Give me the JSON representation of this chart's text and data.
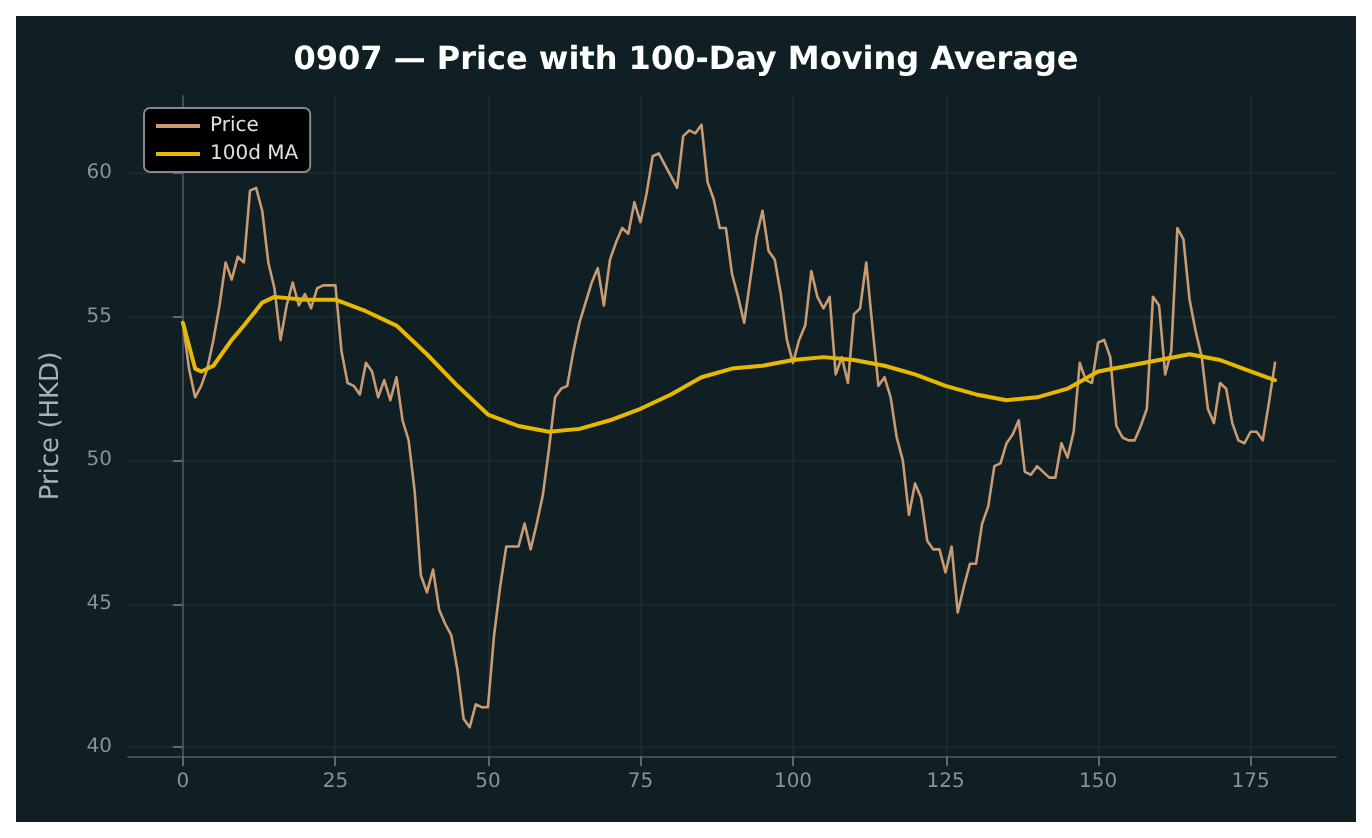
{
  "chart_data": {
    "type": "line",
    "title": "0907 — Price with 100-Day Moving Average",
    "ylabel": "Price (HKD)",
    "xlim": [
      -9,
      189
    ],
    "ylim": [
      39.7,
      62.7
    ],
    "xticks": [
      0,
      25,
      50,
      75,
      100,
      125,
      150,
      175
    ],
    "yticks": [
      40,
      45,
      50,
      55,
      60
    ],
    "grid": true,
    "legend": "top left",
    "marker": "none",
    "line_style": "solid",
    "series": [
      {
        "name": "Price",
        "color": "#c89b72",
        "x": [
          0,
          1,
          2,
          3,
          4,
          5,
          6,
          7,
          8,
          9,
          10,
          11,
          12,
          13,
          14,
          15,
          16,
          17,
          18,
          19,
          20,
          21,
          22,
          23,
          24,
          25,
          26,
          27,
          28,
          29,
          30,
          31,
          32,
          33,
          34,
          35,
          36,
          37,
          38,
          39,
          40,
          41,
          42,
          43,
          44,
          45,
          46,
          47,
          48,
          49,
          50,
          51,
          52,
          53,
          54,
          55,
          56,
          57,
          58,
          59,
          60,
          61,
          62,
          63,
          64,
          65,
          66,
          67,
          68,
          69,
          70,
          71,
          72,
          73,
          74,
          75,
          76,
          77,
          78,
          79,
          80,
          81,
          82,
          83,
          84,
          85,
          86,
          87,
          88,
          89,
          90,
          91,
          92,
          93,
          94,
          95,
          96,
          97,
          98,
          99,
          100,
          101,
          102,
          103,
          104,
          105,
          106,
          107,
          108,
          109,
          110,
          111,
          112,
          113,
          114,
          115,
          116,
          117,
          118,
          119,
          120,
          121,
          122,
          123,
          124,
          125,
          126,
          127,
          128,
          129,
          130,
          131,
          132,
          133,
          134,
          135,
          136,
          137,
          138,
          139,
          140,
          141,
          142,
          143,
          144,
          145,
          146,
          147,
          148,
          149,
          150,
          151,
          152,
          153,
          154,
          155,
          156,
          157,
          158,
          159,
          160,
          161,
          162,
          163,
          164,
          165,
          166,
          167,
          168,
          169,
          170,
          171,
          172,
          173,
          174,
          175,
          176,
          177,
          178,
          179
        ],
        "values": [
          54.8,
          53.2,
          52.2,
          52.6,
          53.2,
          54.2,
          55.4,
          56.9,
          56.3,
          57.1,
          56.9,
          59.4,
          59.5,
          58.7,
          56.9,
          56.0,
          54.2,
          55.4,
          56.2,
          55.4,
          55.8,
          55.3,
          56.0,
          56.1,
          56.1,
          56.1,
          53.8,
          52.7,
          52.6,
          52.3,
          53.4,
          53.1,
          52.2,
          52.8,
          52.1,
          52.9,
          51.4,
          50.7,
          48.9,
          46.0,
          45.4,
          46.2,
          44.8,
          44.3,
          43.9,
          42.7,
          41.0,
          40.7,
          41.5,
          41.4,
          41.4,
          43.9,
          45.6,
          47.0,
          47.0,
          47.0,
          47.8,
          46.9,
          47.8,
          48.8,
          50.4,
          52.2,
          52.5,
          52.6,
          53.8,
          54.8,
          55.5,
          56.2,
          56.7,
          55.4,
          57.0,
          57.6,
          58.1,
          57.9,
          59.0,
          58.3,
          59.3,
          60.6,
          60.7,
          60.3,
          59.9,
          59.5,
          61.3,
          61.5,
          61.4,
          61.7,
          59.7,
          59.1,
          58.1,
          58.1,
          56.5,
          55.7,
          54.8,
          56.3,
          57.8,
          58.7,
          57.3,
          57.0,
          55.8,
          54.2,
          53.4,
          54.2,
          54.7,
          56.6,
          55.7,
          55.3,
          55.7,
          53.0,
          53.6,
          52.7,
          55.1,
          55.3,
          56.9,
          54.7,
          52.6,
          52.9,
          52.2,
          50.8,
          50.0,
          48.1,
          49.2,
          48.7,
          47.2,
          46.9,
          46.9,
          46.1,
          47.0,
          44.7,
          45.6,
          46.4,
          46.4,
          47.8,
          48.4,
          49.8,
          49.9,
          50.6,
          50.9,
          51.4,
          49.6,
          49.5,
          49.8,
          49.6,
          49.4,
          49.4,
          50.6,
          50.1,
          51.0,
          53.4,
          52.8,
          52.7,
          54.1,
          54.2,
          53.6,
          51.2,
          50.8,
          50.7,
          50.7,
          51.2,
          51.8,
          55.7,
          55.4,
          53.0,
          53.8,
          58.1,
          57.7,
          55.6,
          54.5,
          53.6,
          51.8,
          51.3,
          52.7,
          52.5,
          51.3,
          50.7,
          50.6,
          51.0,
          51.0,
          50.7,
          52.0,
          53.4
        ]
      },
      {
        "name": "100d MA",
        "color": "#e6b800",
        "x": [
          0,
          2,
          3,
          5,
          8,
          10,
          13,
          15,
          20,
          25,
          30,
          35,
          40,
          45,
          50,
          55,
          60,
          65,
          70,
          75,
          80,
          85,
          90,
          95,
          100,
          105,
          110,
          115,
          120,
          125,
          130,
          135,
          140,
          145,
          150,
          155,
          160,
          165,
          170,
          175,
          179
        ],
        "values": [
          54.8,
          53.2,
          53.1,
          53.3,
          54.2,
          54.7,
          55.5,
          55.7,
          55.6,
          55.6,
          55.2,
          54.7,
          53.7,
          52.6,
          51.6,
          51.2,
          51.0,
          51.1,
          51.4,
          51.8,
          52.3,
          52.9,
          53.2,
          53.3,
          53.5,
          53.6,
          53.5,
          53.3,
          53.0,
          52.6,
          52.3,
          52.1,
          52.2,
          52.5,
          53.1,
          53.3,
          53.5,
          53.7,
          53.5,
          53.1,
          52.8
        ]
      }
    ]
  }
}
